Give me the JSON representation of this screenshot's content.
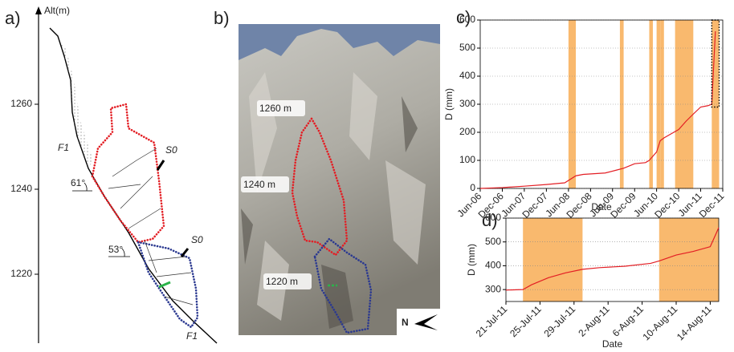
{
  "panel_a": {
    "label": "a)",
    "axis_label": "Alt(m)",
    "ticks": [
      1260,
      1240,
      1220
    ],
    "annotations": [
      "F1",
      "S0",
      "61°",
      "53°",
      "S0",
      "F1"
    ]
  },
  "panel_b": {
    "label": "b)",
    "altitude_labels": [
      "1260 m",
      "1240 m",
      "1220 m"
    ],
    "north": "N"
  },
  "chart_data": [
    {
      "type": "line",
      "panel_label": "c)",
      "xlabel": "Date",
      "ylabel": "D (mm)",
      "x": [
        "2006-06",
        "2006-12",
        "2007-06",
        "2007-12",
        "2008-05",
        "2008-08",
        "2008-10",
        "2009-04",
        "2009-07",
        "2009-09",
        "2009-12",
        "2010-03",
        "2010-04",
        "2010-06",
        "2010-07",
        "2010-08",
        "2010-10",
        "2010-12",
        "2011-02",
        "2011-04",
        "2011-06",
        "2011-08",
        "2011-09",
        "2011-10"
      ],
      "series": [
        {
          "color": "#e31e24",
          "values": [
            0,
            3,
            8,
            14,
            20,
            45,
            50,
            55,
            65,
            72,
            88,
            92,
            100,
            130,
            170,
            180,
            195,
            210,
            240,
            265,
            290,
            295,
            300,
            560
          ]
        }
      ],
      "xlim": [
        "2006-06",
        "2011-12"
      ],
      "xticks": [
        {
          "value": "2006-06",
          "label": "Jun-06"
        },
        {
          "value": "2006-12",
          "label": "Dec-06"
        },
        {
          "value": "2007-06",
          "label": "Jun-07"
        },
        {
          "value": "2007-12",
          "label": "Dec-07"
        },
        {
          "value": "2008-06",
          "label": "Jun-08"
        },
        {
          "value": "2008-12",
          "label": "Dec-08"
        },
        {
          "value": "2009-06",
          "label": "Jun-09"
        },
        {
          "value": "2009-12",
          "label": "Dec-09"
        },
        {
          "value": "2010-06",
          "label": "Jun-10"
        },
        {
          "value": "2010-12",
          "label": "Dec-10"
        },
        {
          "value": "2011-06",
          "label": "Jun-11"
        },
        {
          "value": "2011-12",
          "label": "Dec-11"
        }
      ],
      "ylim": [
        0,
        600
      ],
      "yticks": [
        0,
        100,
        200,
        300,
        400,
        500,
        600
      ],
      "grid": true,
      "shade_color": "#f9b96e",
      "shaded_periods": [
        [
          "2008-06",
          "2008-08"
        ],
        [
          "2009-08",
          "2009-09"
        ],
        [
          "2010-04",
          "2010-05"
        ],
        [
          "2010-06",
          "2010-07"
        ],
        [
          "2010-07",
          "2010-08"
        ],
        [
          "2010-11",
          "2011-04"
        ],
        [
          "2011-09",
          "2011-11"
        ]
      ],
      "highlight_box": {
        "x": [
          "2011-09",
          "2011-11"
        ],
        "y": [
          290,
          600
        ]
      }
    },
    {
      "type": "line",
      "panel_label": "d)",
      "xlabel": "Date",
      "ylabel": "D (mm)",
      "x": [
        "2011-07-21",
        "2011-07-23",
        "2011-07-24",
        "2011-07-26",
        "2011-07-28",
        "2011-07-30",
        "2011-08-01",
        "2011-08-04",
        "2011-08-07",
        "2011-08-08",
        "2011-08-10",
        "2011-08-12",
        "2011-08-14",
        "2011-08-15"
      ],
      "series": [
        {
          "color": "#e31e24",
          "values": [
            298,
            300,
            320,
            350,
            370,
            385,
            392,
            398,
            410,
            420,
            445,
            460,
            480,
            560
          ]
        }
      ],
      "xlim": [
        "2011-07-21",
        "2011-08-15"
      ],
      "xticks": [
        {
          "value": "2011-07-21",
          "label": "21-Jul-11"
        },
        {
          "value": "2011-07-25",
          "label": "25-Jul-11"
        },
        {
          "value": "2011-07-29",
          "label": "29-Jul-11"
        },
        {
          "value": "2011-08-02",
          "label": "2-Aug-11"
        },
        {
          "value": "2011-08-06",
          "label": "6-Aug-11"
        },
        {
          "value": "2011-08-10",
          "label": "10-Aug-11"
        },
        {
          "value": "2011-08-14",
          "label": "14-Aug-11"
        }
      ],
      "ylim": [
        250,
        600
      ],
      "yticks": [
        300,
        400,
        500,
        600
      ],
      "grid": true,
      "shade_color": "#f9b96e",
      "shaded_periods": [
        [
          "2011-07-23",
          "2011-07-30"
        ],
        [
          "2011-08-08",
          "2011-08-15"
        ]
      ]
    }
  ]
}
